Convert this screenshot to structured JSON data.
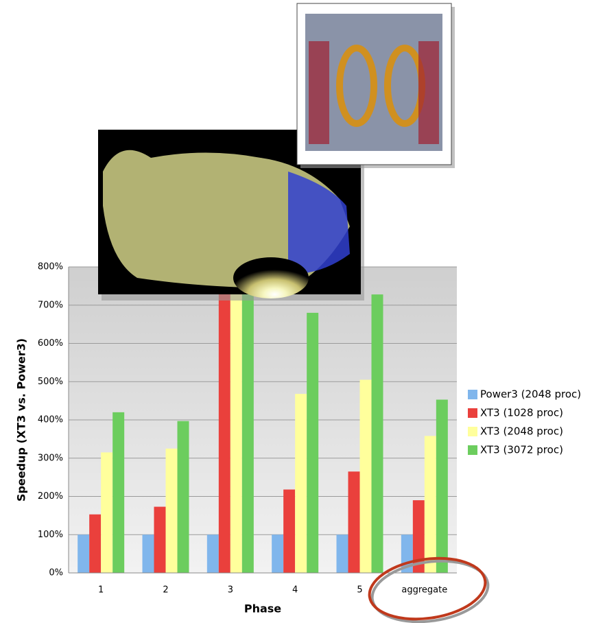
{
  "chart_data": {
    "type": "bar",
    "x_label": "Phase",
    "y_label": "Speedup (XT3 vs. Power3)",
    "categories": [
      "1",
      "2",
      "3",
      "4",
      "5",
      "aggregate"
    ],
    "series": [
      {
        "name": "Power3 (2048 proc)",
        "color": "#80b6ec",
        "values": [
          100,
          100,
          100,
          100,
          100,
          100
        ]
      },
      {
        "name": "XT3 (1028 proc)",
        "color": "#ea403c",
        "values": [
          153,
          173,
          780,
          218,
          265,
          190
        ]
      },
      {
        "name": "XT3 (2048 proc)",
        "color": "#ffff9c",
        "values": [
          315,
          325,
          770,
          468,
          505,
          358
        ]
      },
      {
        "name": "XT3 (3072 proc)",
        "color": "#6ccd5e",
        "values": [
          420,
          397,
          790,
          680,
          728,
          453
        ]
      }
    ],
    "ylim": [
      0,
      800
    ],
    "yticks": [
      {
        "value": 0,
        "label": "0%"
      },
      {
        "value": 100,
        "label": "100%"
      },
      {
        "value": 200,
        "label": "200%"
      },
      {
        "value": 300,
        "label": "300%"
      },
      {
        "value": 400,
        "label": "400%"
      },
      {
        "value": 500,
        "label": "500%"
      },
      {
        "value": 600,
        "label": "600%"
      },
      {
        "value": 700,
        "label": "700%"
      },
      {
        "value": 800,
        "label": "800%"
      }
    ],
    "grid": true,
    "legend": "right"
  }
}
